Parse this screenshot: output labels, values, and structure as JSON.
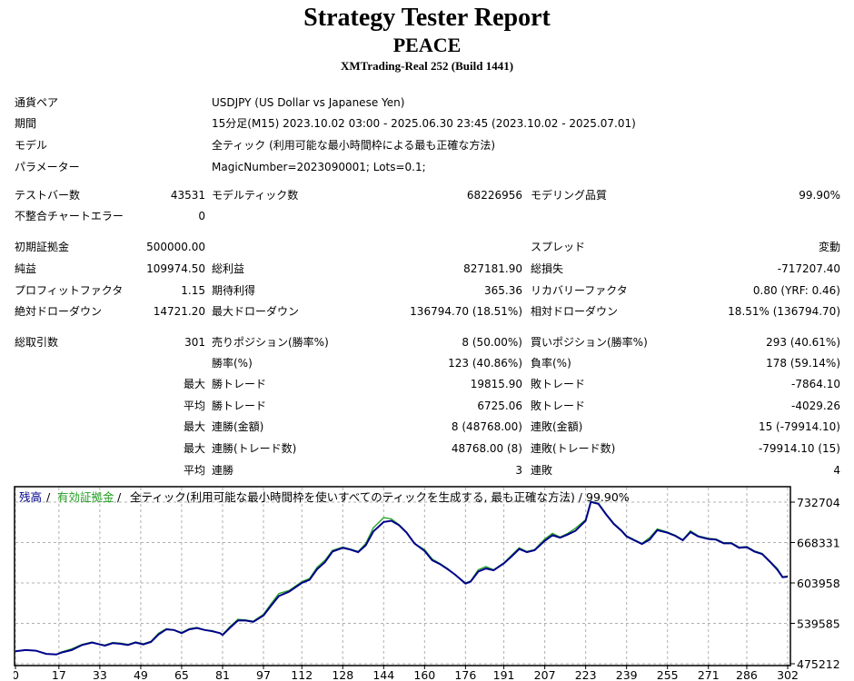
{
  "header": {
    "title": "Strategy Tester Report",
    "ea_name": "PEACE",
    "server": "XMTrading-Real 252 (Build 1441)"
  },
  "info": {
    "currency_pair_label": "通貨ペア",
    "currency_pair_value": "USDJPY (US Dollar vs Japanese Yen)",
    "period_label": "期間",
    "period_value": "15分足(M15) 2023.10.02 03:00 - 2025.06.30 23:45 (2023.10.02 - 2025.07.01)",
    "model_label": "モデル",
    "model_value": "全ティック (利用可能な最小時間枠による最も正確な方法)",
    "params_label": "パラメーター",
    "params_value": "MagicNumber=2023090001; Lots=0.1;"
  },
  "stats": {
    "test_bars_label": "テストバー数",
    "test_bars_value": "43531",
    "model_ticks_label": "モデルティック数",
    "model_ticks_value": "68226956",
    "model_quality_label": "モデリング品質",
    "model_quality_value": "99.90%",
    "mismatch_label": "不整合チャートエラー",
    "mismatch_value": "0",
    "deposit_label": "初期証拠金",
    "deposit_value": "500000.00",
    "spread_label": "スプレッド",
    "spread_value": "変動",
    "net_label": "純益",
    "net_value": "109974.50",
    "gross_profit_label": "総利益",
    "gross_profit_value": "827181.90",
    "gross_loss_label": "総損失",
    "gross_loss_value": "-717207.40",
    "pf_label": "プロフィットファクタ",
    "pf_value": "1.15",
    "expected_label": "期待利得",
    "expected_value": "365.36",
    "recovery_label": "リカバリーファクタ",
    "recovery_value": "0.80 (YRF: 0.46)",
    "abs_dd_label": "絶対ドローダウン",
    "abs_dd_value": "14721.20",
    "max_dd_label": "最大ドローダウン",
    "max_dd_value": "136794.70 (18.51%)",
    "rel_dd_label": "相対ドローダウン",
    "rel_dd_value": "18.51% (136794.70)",
    "total_trades_label": "総取引数",
    "total_trades_value": "301",
    "short_label": "売りポジション(勝率%)",
    "short_value": "8 (50.00%)",
    "long_label": "買いポジション(勝率%)",
    "long_value": "293 (40.61%)",
    "win_rate_label": "勝率(%)",
    "win_rate_value": "123 (40.86%)",
    "loss_rate_label": "負率(%)",
    "loss_rate_value": "178 (59.14%)",
    "max_label_1": "最大",
    "largest_win_label": "勝トレード",
    "largest_win_value": "19815.90",
    "largest_loss_label": "敗トレード",
    "largest_loss_value": "-7864.10",
    "avg_label_1": "平均",
    "avg_win_label": "勝トレード",
    "avg_win_value": "6725.06",
    "avg_loss_label": "敗トレード",
    "avg_loss_value": "-4029.26",
    "max_label_2": "最大",
    "max_consec_wins_label": "連勝(金額)",
    "max_consec_wins_value": "8 (48768.00)",
    "max_consec_losses_label": "連敗(金額)",
    "max_consec_losses_value": "15 (-79914.10)",
    "max_label_3": "最大",
    "max_consec_profit_label": "連勝(トレード数)",
    "max_consec_profit_value": "48768.00 (8)",
    "max_consec_loss_label": "連敗(トレード数)",
    "max_consec_loss_value": "-79914.10 (15)",
    "avg_label_2": "平均",
    "avg_consec_wins_label": "連勝",
    "avg_consec_wins_value": "3",
    "avg_consec_losses_label": "連敗",
    "avg_consec_losses_value": "4"
  },
  "chart_data": {
    "type": "line",
    "legend_balance": "残高",
    "legend_sep_1": " / ",
    "legend_equity": "有効証拠金",
    "legend_sep_2": " / ",
    "legend_desc": "全ティック(利用可能な最小時間枠を使いすべてのティックを生成する, 最も正確な方法) / 99.90%",
    "x_ticks": [
      "0",
      "17",
      "33",
      "49",
      "65",
      "81",
      "97",
      "112",
      "128",
      "144",
      "160",
      "176",
      "191",
      "207",
      "223",
      "239",
      "255",
      "271",
      "286",
      "302"
    ],
    "y_ticks": [
      "732704",
      "668331",
      "603958",
      "539585",
      "475212"
    ],
    "xlim": [
      0,
      302
    ],
    "ylim": [
      475212,
      732704
    ],
    "colors": {
      "balance": "#00008b",
      "equity": "#22a022",
      "grid": "#b0b0b0"
    },
    "series": [
      {
        "name": "残高",
        "x": [
          0,
          4,
          8,
          12,
          16,
          18,
          22,
          26,
          30,
          33,
          35,
          38,
          41,
          44,
          47,
          50,
          53,
          56,
          59,
          62,
          65,
          68,
          71,
          74,
          77,
          80,
          81,
          84,
          87,
          90,
          93,
          97,
          100,
          103,
          107,
          112,
          115,
          118,
          121,
          124,
          128,
          131,
          134,
          137,
          140,
          144,
          147,
          150,
          153,
          156,
          160,
          163,
          166,
          169,
          172,
          176,
          178,
          181,
          184,
          187,
          191,
          194,
          197,
          200,
          203,
          207,
          210,
          213,
          216,
          219,
          223,
          225,
          228,
          231,
          234,
          237,
          239,
          242,
          245,
          248,
          251,
          255,
          258,
          261,
          264,
          267,
          271,
          274,
          277,
          280,
          283,
          286,
          289,
          292,
          295,
          298,
          300,
          302
        ],
        "values": [
          495000,
          497000,
          496000,
          491000,
          490000,
          493000,
          497000,
          505000,
          509000,
          506000,
          504000,
          508000,
          507000,
          505000,
          509000,
          506000,
          510000,
          522000,
          530000,
          529000,
          524000,
          530000,
          532000,
          529000,
          527000,
          524000,
          521000,
          533000,
          544000,
          544000,
          542000,
          552000,
          568000,
          583000,
          590000,
          604000,
          609000,
          626000,
          637000,
          654000,
          660000,
          657000,
          653000,
          664000,
          686000,
          701000,
          703000,
          696000,
          684000,
          667000,
          655000,
          640000,
          634000,
          626000,
          617000,
          603000,
          606000,
          622000,
          627000,
          624000,
          635000,
          646000,
          658000,
          653000,
          656000,
          671000,
          680000,
          676000,
          681000,
          687000,
          703000,
          733000,
          730000,
          713000,
          698000,
          687000,
          678000,
          672000,
          666000,
          673000,
          688000,
          684000,
          679000,
          672000,
          685000,
          678000,
          674000,
          673000,
          667000,
          667000,
          660000,
          661000,
          654000,
          650000,
          638000,
          625000,
          613000,
          614000
        ]
      },
      {
        "name": "有効証拠金",
        "x": [
          0,
          4,
          8,
          12,
          16,
          18,
          22,
          26,
          30,
          33,
          35,
          38,
          41,
          44,
          47,
          50,
          53,
          56,
          59,
          62,
          65,
          68,
          71,
          74,
          77,
          80,
          81,
          84,
          87,
          90,
          93,
          97,
          100,
          103,
          107,
          112,
          115,
          118,
          121,
          124,
          128,
          131,
          134,
          137,
          140,
          144,
          147,
          150,
          153,
          156,
          160,
          163,
          166,
          169,
          172,
          176,
          178,
          181,
          184,
          187,
          191,
          194,
          197,
          200,
          203,
          207,
          210,
          213,
          216,
          219,
          223,
          225,
          228,
          231,
          234,
          237,
          239,
          242,
          245,
          248,
          251,
          255,
          258,
          261,
          264,
          267,
          271,
          274,
          277,
          280,
          283,
          286,
          289,
          292,
          295,
          298,
          300,
          302
        ],
        "values": [
          495000,
          497000,
          496000,
          491000,
          490000,
          494000,
          499000,
          506000,
          510000,
          506000,
          505000,
          509000,
          508000,
          506000,
          510000,
          507000,
          511000,
          524000,
          531000,
          529000,
          525000,
          531000,
          533000,
          529000,
          528000,
          524000,
          522000,
          535000,
          546000,
          545000,
          543000,
          554000,
          571000,
          587000,
          592000,
          606000,
          611000,
          629000,
          640000,
          656000,
          661000,
          658000,
          654000,
          667000,
          692000,
          708000,
          706000,
          697000,
          685000,
          667000,
          657000,
          642000,
          635000,
          627000,
          617000,
          604000,
          607000,
          625000,
          630000,
          625000,
          636000,
          648000,
          660000,
          654000,
          657000,
          674000,
          683000,
          677000,
          683000,
          691000,
          705000,
          734000,
          731000,
          714000,
          699000,
          688000,
          679000,
          673000,
          667000,
          676000,
          690000,
          685000,
          680000,
          673000,
          687000,
          679000,
          675000,
          674000,
          668000,
          668000,
          661000,
          662000,
          655000,
          651000,
          639000,
          627000,
          614000,
          615000
        ]
      }
    ]
  }
}
